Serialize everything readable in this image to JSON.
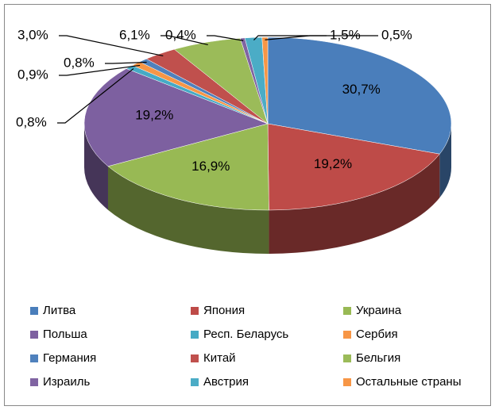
{
  "chart_data": {
    "type": "pie",
    "categories": [
      "Литва",
      "Япония",
      "Украина",
      "Польша",
      "Респ. Беларусь",
      "Сербия",
      "Германия",
      "Китай",
      "Бельгия",
      "Израиль",
      "Австрия",
      "Остальные страны"
    ],
    "values": [
      30.7,
      19.2,
      16.9,
      19.2,
      0.8,
      0.9,
      0.8,
      3.0,
      6.1,
      0.4,
      1.5,
      0.5
    ],
    "value_labels": [
      "30,7%",
      "19,2%",
      "16,9%",
      "19,2%",
      "0,8%",
      "0,9%",
      "0,8%",
      "3,0%",
      "6,1%",
      "0,4%",
      "1,5%",
      "0,5%"
    ],
    "colors": [
      "#4a7ebb",
      "#be4b48",
      "#98b954",
      "#7d60a0",
      "#46aac5",
      "#f79646",
      "#4f81bd",
      "#c0504d",
      "#9bbb59",
      "#8064a2",
      "#4bacc6",
      "#f79646"
    ],
    "legend": "bottom"
  }
}
